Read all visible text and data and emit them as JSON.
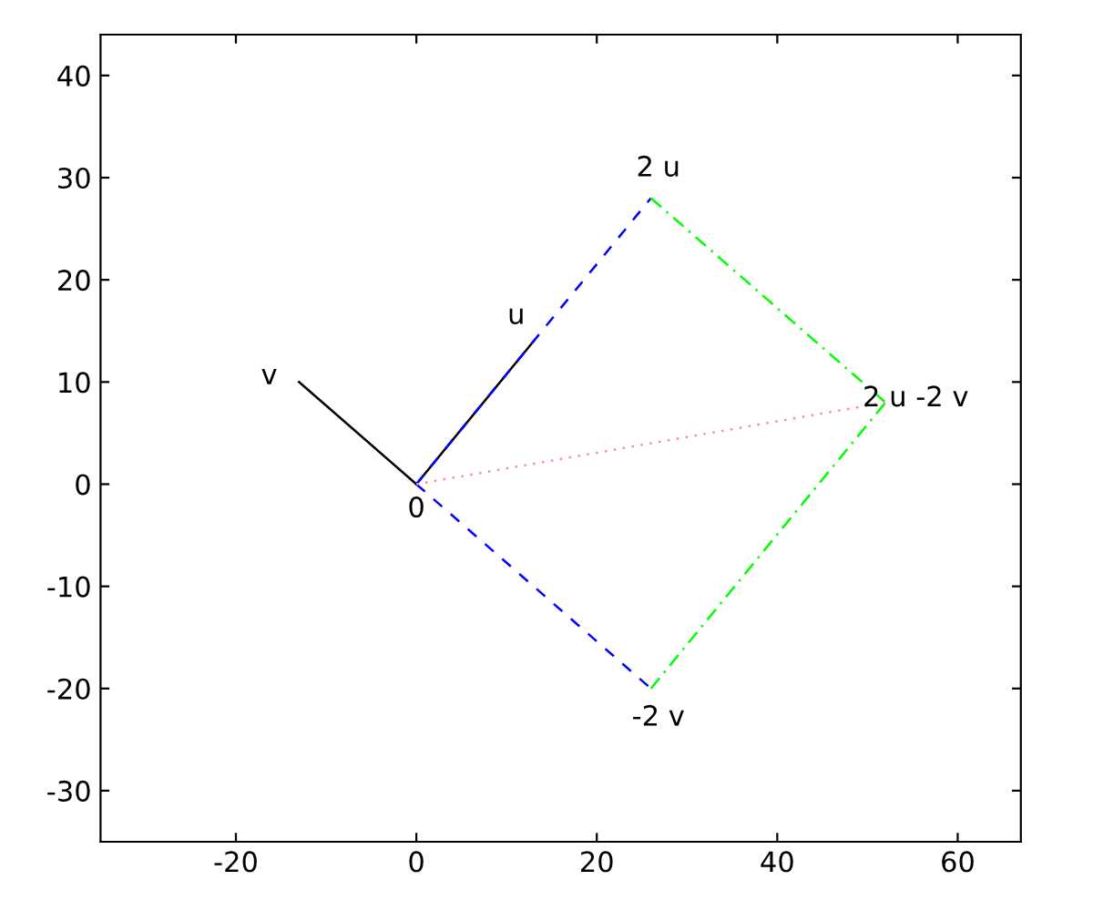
{
  "chart_data": {
    "type": "line",
    "xlim": [
      -35,
      67
    ],
    "ylim": [
      -35,
      44
    ],
    "xticks": [
      -20,
      0,
      20,
      40,
      60
    ],
    "yticks": [
      -30,
      -20,
      -10,
      0,
      10,
      20,
      30,
      40
    ],
    "grid": false,
    "legend": false,
    "series": [
      {
        "color": "#000000",
        "x": [
          0,
          13
        ],
        "values": [
          0,
          14
        ],
        "line_style": "solid"
      },
      {
        "color": "#000000",
        "x": [
          0,
          -13
        ],
        "values": [
          0,
          10
        ],
        "line_style": "solid"
      },
      {
        "color": "#0000ff",
        "x": [
          0,
          26
        ],
        "values": [
          0,
          28
        ],
        "line_style": "dashed"
      },
      {
        "color": "#0000ff",
        "x": [
          0,
          26
        ],
        "values": [
          0,
          -20
        ],
        "line_style": "dashed"
      },
      {
        "color": "#00ff00",
        "x": [
          26,
          52
        ],
        "values": [
          28,
          8
        ],
        "line_style": "dashdot"
      },
      {
        "color": "#00ff00",
        "x": [
          26,
          52
        ],
        "values": [
          -20,
          8
        ],
        "line_style": "dashdot"
      },
      {
        "color": "#ff88aa",
        "x": [
          0,
          52
        ],
        "values": [
          0,
          8
        ],
        "line_style": "dotted"
      }
    ],
    "annotations": [
      {
        "text": "u",
        "x": 13,
        "y": 14
      },
      {
        "text": "v",
        "x": -13,
        "y": 10
      },
      {
        "text": "0",
        "x": 0,
        "y": 0
      },
      {
        "text": "2 u",
        "x": 26,
        "y": 28
      },
      {
        "text": "-2 v",
        "x": 26,
        "y": -20
      },
      {
        "text": "2 u -2 v",
        "x": 52,
        "y": 8
      }
    ]
  }
}
